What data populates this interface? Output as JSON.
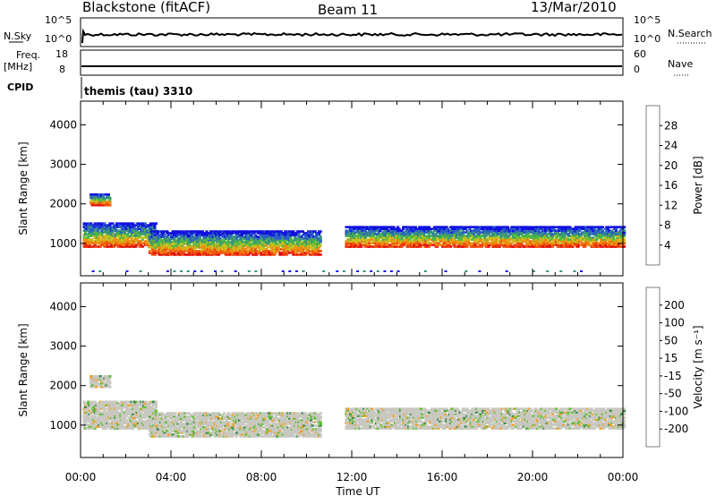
{
  "header": {
    "station": "Blackstone (fitACF)",
    "beam": "Beam 11",
    "date": "13/Mar/2010"
  },
  "control_panel": {
    "nsky_label": "N.Sky",
    "nsearch_label": "N.Search",
    "freq_label_line1": "Freq.",
    "freq_label_line2": "[MHz]",
    "nave_label": "Nave",
    "cpid_label": "CPID",
    "cpid_value": "themis (tau) 3310",
    "noise_left_ticks": [
      "10^5",
      "10^0"
    ],
    "noise_right_ticks": [
      "10^5",
      "10^0"
    ],
    "freq_left_ticks": [
      "18",
      "8"
    ],
    "freq_right_ticks": [
      "60",
      "0"
    ]
  },
  "colorbars": {
    "power": {
      "label": "Power [dB]",
      "ticks": [
        "28",
        "24",
        "20",
        "16",
        "12",
        "8",
        "4"
      ],
      "colors": [
        "#1010e0",
        "#2a5cc8",
        "#3a9080",
        "#4cb845",
        "#c8c020",
        "#f08a10",
        "#f04a10",
        "#e01010"
      ]
    },
    "velocity": {
      "label": "Velocity [m s⁻¹]",
      "ticks": [
        "200",
        "100",
        "50",
        "15",
        "-15",
        "-50",
        "-100",
        "-200"
      ],
      "colors": [
        "#1a3aa8",
        "#2a6a9a",
        "#3a8a4a",
        "#60c030",
        "#c8c8c0",
        "#f0a020",
        "#f07818",
        "#f04010",
        "#e00000"
      ]
    }
  },
  "chart_data": [
    {
      "type": "heatmap",
      "panel": "power",
      "ylabel": "Slant Range [km]",
      "xlabel": "Time UT",
      "ylim": [
        180,
        4600
      ],
      "xlim": [
        0,
        24
      ],
      "x_ticks": [
        "00:00",
        "04:00",
        "08:00",
        "12:00",
        "16:00",
        "20:00",
        "00:00"
      ],
      "y_ticks": [
        "1000",
        "2000",
        "3000",
        "4000"
      ],
      "scale_label": "Power [dB]",
      "scale_range": [
        0,
        30
      ],
      "bands": [
        {
          "t_start": 0.1,
          "t_end": 3.3,
          "r_low": 900,
          "r_high": 1500
        },
        {
          "t_start": 3.0,
          "t_end": 10.6,
          "r_low": 700,
          "r_high": 1300
        },
        {
          "t_start": 11.7,
          "t_end": 24.0,
          "r_low": 900,
          "r_high": 1400
        },
        {
          "t_start": 0.4,
          "t_end": 1.3,
          "r_low": 1950,
          "r_high": 2250
        }
      ]
    },
    {
      "type": "heatmap",
      "panel": "velocity",
      "ylabel": "Slant Range [km]",
      "xlabel": "Time UT",
      "ylim": [
        180,
        4600
      ],
      "xlim": [
        0,
        24
      ],
      "x_ticks": [
        "00:00",
        "04:00",
        "08:00",
        "12:00",
        "16:00",
        "20:00",
        "00:00"
      ],
      "y_ticks": [
        "1000",
        "2000",
        "3000",
        "4000"
      ],
      "scale_label": "Velocity [m s⁻¹]",
      "scale_range": [
        -250,
        250
      ],
      "bands": [
        {
          "t_start": 0.1,
          "t_end": 3.3,
          "r_low": 900,
          "r_high": 1600
        },
        {
          "t_start": 3.0,
          "t_end": 10.6,
          "r_low": 700,
          "r_high": 1300
        },
        {
          "t_start": 11.7,
          "t_end": 24.0,
          "r_low": 900,
          "r_high": 1400
        },
        {
          "t_start": 0.4,
          "t_end": 1.3,
          "r_low": 1950,
          "r_high": 2250
        }
      ]
    }
  ]
}
